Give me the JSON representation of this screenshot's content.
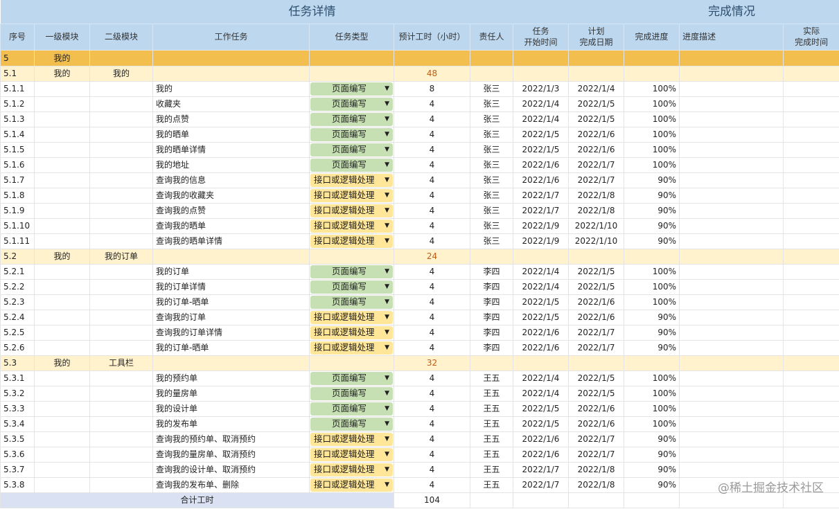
{
  "header": {
    "group1": "任务详情",
    "group2": "完成情况",
    "columns": [
      "序号",
      "一级模块",
      "二级模块",
      "工作任务",
      "任务类型",
      "预计工时（小时）",
      "责任人",
      "任务\n开始时间",
      "计划\n完成日期",
      "完成进度",
      "进度描述",
      "实际\n完成时间"
    ]
  },
  "colors": {
    "header": "#bdd7ee",
    "level1": "#f2bf4f",
    "level2": "#fff2cc",
    "type_page": "#c6e0b4",
    "type_api": "#ffe699"
  },
  "rows": [
    {
      "kind": "l1",
      "id": "5",
      "m1": "我的"
    },
    {
      "kind": "l2",
      "id": "5.1",
      "m1": "我的",
      "m2": "我的",
      "hours": "48"
    },
    {
      "kind": "t",
      "id": "5.1.1",
      "task": "我的",
      "type": "页面编写",
      "hours": "8",
      "owner": "张三",
      "start": "2022/1/3",
      "end": "2022/1/4",
      "progress": "100%"
    },
    {
      "kind": "t",
      "id": "5.1.2",
      "task": "收藏夹",
      "type": "页面编写",
      "hours": "4",
      "owner": "张三",
      "start": "2022/1/4",
      "end": "2022/1/5",
      "progress": "100%"
    },
    {
      "kind": "t",
      "id": "5.1.3",
      "task": "我的点赞",
      "type": "页面编写",
      "hours": "4",
      "owner": "张三",
      "start": "2022/1/4",
      "end": "2022/1/5",
      "progress": "100%"
    },
    {
      "kind": "t",
      "id": "5.1.4",
      "task": "我的晒单",
      "type": "页面编写",
      "hours": "4",
      "owner": "张三",
      "start": "2022/1/5",
      "end": "2022/1/6",
      "progress": "100%"
    },
    {
      "kind": "t",
      "id": "5.1.5",
      "task": "我的晒单详情",
      "type": "页面编写",
      "hours": "4",
      "owner": "张三",
      "start": "2022/1/5",
      "end": "2022/1/6",
      "progress": "100%"
    },
    {
      "kind": "t",
      "id": "5.1.6",
      "task": "我的地址",
      "type": "页面编写",
      "hours": "4",
      "owner": "张三",
      "start": "2022/1/6",
      "end": "2022/1/7",
      "progress": "100%"
    },
    {
      "kind": "t",
      "id": "5.1.7",
      "task": "查询我的信息",
      "type": "接口或逻辑处理",
      "hours": "4",
      "owner": "张三",
      "start": "2022/1/6",
      "end": "2022/1/7",
      "progress": "90%"
    },
    {
      "kind": "t",
      "id": "5.1.8",
      "task": "查询我的收藏夹",
      "type": "接口或逻辑处理",
      "hours": "4",
      "owner": "张三",
      "start": "2022/1/7",
      "end": "2022/1/8",
      "progress": "90%"
    },
    {
      "kind": "t",
      "id": "5.1.9",
      "task": "查询我的点赞",
      "type": "接口或逻辑处理",
      "hours": "4",
      "owner": "张三",
      "start": "2022/1/7",
      "end": "2022/1/8",
      "progress": "90%"
    },
    {
      "kind": "t",
      "id": "5.1.10",
      "task": "查询我的晒单",
      "type": "接口或逻辑处理",
      "hours": "4",
      "owner": "张三",
      "start": "2022/1/9",
      "end": "2022/1/10",
      "progress": "90%"
    },
    {
      "kind": "t",
      "id": "5.1.11",
      "task": "查询我的晒单详情",
      "type": "接口或逻辑处理",
      "hours": "4",
      "owner": "张三",
      "start": "2022/1/9",
      "end": "2022/1/10",
      "progress": "90%"
    },
    {
      "kind": "l2",
      "id": "5.2",
      "m1": "我的",
      "m2": "我的订单",
      "hours": "24"
    },
    {
      "kind": "t",
      "id": "5.2.1",
      "task": "我的订单",
      "type": "页面编写",
      "hours": "4",
      "owner": "李四",
      "start": "2022/1/4",
      "end": "2022/1/5",
      "progress": "100%"
    },
    {
      "kind": "t",
      "id": "5.2.2",
      "task": "我的订单详情",
      "type": "页面编写",
      "hours": "4",
      "owner": "李四",
      "start": "2022/1/4",
      "end": "2022/1/5",
      "progress": "100%"
    },
    {
      "kind": "t",
      "id": "5.2.3",
      "task": "我的订单-晒单",
      "type": "页面编写",
      "hours": "4",
      "owner": "李四",
      "start": "2022/1/5",
      "end": "2022/1/6",
      "progress": "100%"
    },
    {
      "kind": "t",
      "id": "5.2.4",
      "task": "查询我的订单",
      "type": "接口或逻辑处理",
      "hours": "4",
      "owner": "李四",
      "start": "2022/1/5",
      "end": "2022/1/6",
      "progress": "90%"
    },
    {
      "kind": "t",
      "id": "5.2.5",
      "task": "查询我的订单详情",
      "type": "接口或逻辑处理",
      "hours": "4",
      "owner": "李四",
      "start": "2022/1/6",
      "end": "2022/1/7",
      "progress": "90%"
    },
    {
      "kind": "t",
      "id": "5.2.6",
      "task": "我的订单-晒单",
      "type": "接口或逻辑处理",
      "hours": "4",
      "owner": "李四",
      "start": "2022/1/6",
      "end": "2022/1/7",
      "progress": "90%"
    },
    {
      "kind": "l2",
      "id": "5.3",
      "m1": "我的",
      "m2": "工具栏",
      "hours": "32"
    },
    {
      "kind": "t",
      "id": "5.3.1",
      "task": "我的预约单",
      "type": "页面编写",
      "hours": "4",
      "owner": "王五",
      "start": "2022/1/4",
      "end": "2022/1/5",
      "progress": "100%"
    },
    {
      "kind": "t",
      "id": "5.3.2",
      "task": "我的量房单",
      "type": "页面编写",
      "hours": "4",
      "owner": "王五",
      "start": "2022/1/4",
      "end": "2022/1/5",
      "progress": "100%"
    },
    {
      "kind": "t",
      "id": "5.3.3",
      "task": "我的设计单",
      "type": "页面编写",
      "hours": "4",
      "owner": "王五",
      "start": "2022/1/5",
      "end": "2022/1/6",
      "progress": "100%"
    },
    {
      "kind": "t",
      "id": "5.3.4",
      "task": "我的发布单",
      "type": "页面编写",
      "hours": "4",
      "owner": "王五",
      "start": "2022/1/5",
      "end": "2022/1/6",
      "progress": "100%"
    },
    {
      "kind": "t",
      "id": "5.3.5",
      "task": "查询我的预约单、取消预约",
      "type": "接口或逻辑处理",
      "hours": "4",
      "owner": "王五",
      "start": "2022/1/6",
      "end": "2022/1/7",
      "progress": "90%"
    },
    {
      "kind": "t",
      "id": "5.3.6",
      "task": "查询我的量房单、取消预约",
      "type": "接口或逻辑处理",
      "hours": "4",
      "owner": "王五",
      "start": "2022/1/6",
      "end": "2022/1/7",
      "progress": "90%"
    },
    {
      "kind": "t",
      "id": "5.3.7",
      "task": "查询我的设计单、取消预约",
      "type": "接口或逻辑处理",
      "hours": "4",
      "owner": "王五",
      "start": "2022/1/7",
      "end": "2022/1/8",
      "progress": "90%"
    },
    {
      "kind": "t",
      "id": "5.3.8",
      "task": "查询我的发布单、删除",
      "type": "接口或逻辑处理",
      "hours": "4",
      "owner": "王五",
      "start": "2022/1/7",
      "end": "2022/1/8",
      "progress": "90%"
    }
  ],
  "total": {
    "label": "合计工时",
    "hours": "104"
  },
  "watermark": "@稀土掘金技术社区"
}
